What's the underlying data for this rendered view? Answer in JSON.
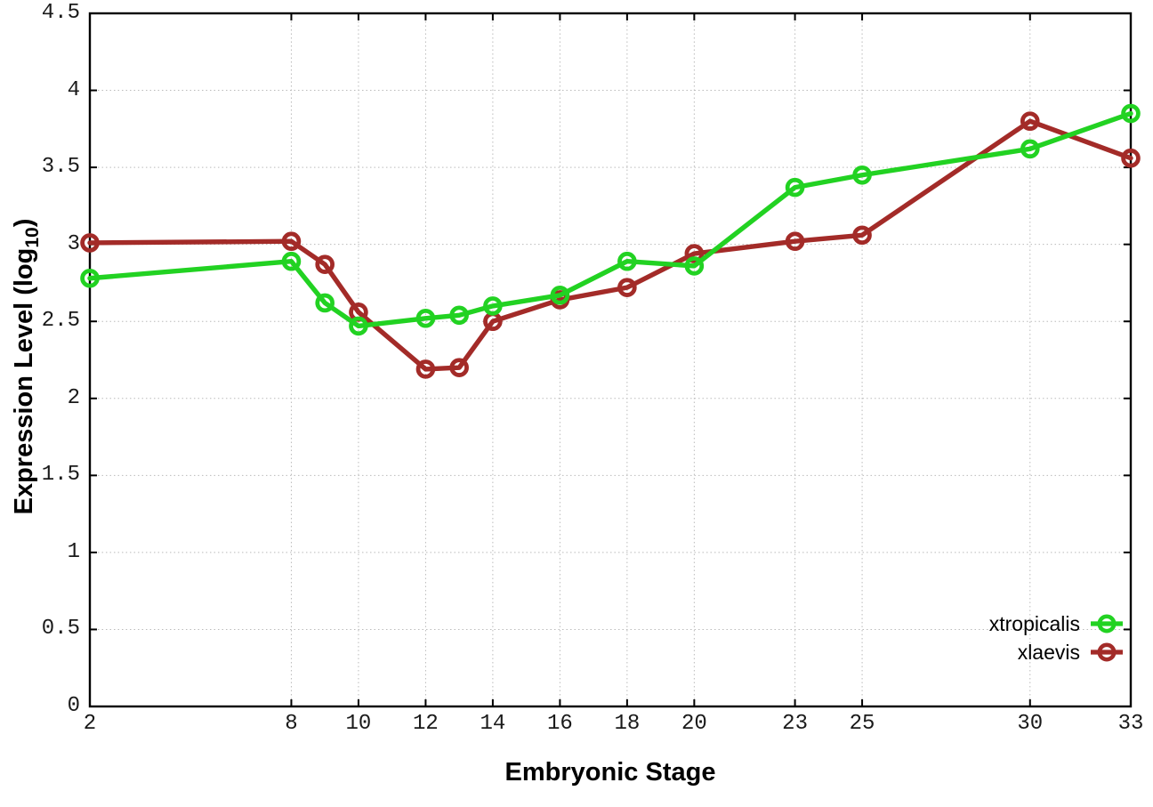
{
  "figure": {
    "background": "#ffffff",
    "ylabel_prefix": "Expression Level (log",
    "ylabel_sub": "10",
    "ylabel_suffix": ")"
  },
  "chart_data": {
    "type": "line",
    "title": "",
    "xlabel": "Embryonic Stage",
    "ylabel": "Expression Level (log10)",
    "xlim": [
      2,
      33
    ],
    "ylim": [
      0,
      4.5
    ],
    "grid": true,
    "grid_style": "dotted",
    "legend_position": "bottom-right",
    "axis_color": "#000000",
    "grid_color": "#bbbbbb",
    "x": [
      2,
      8,
      9,
      10,
      12,
      13,
      14,
      16,
      18,
      20,
      23,
      25,
      30,
      33
    ],
    "x_tick_values": [
      2,
      8,
      10,
      12,
      14,
      16,
      18,
      20,
      23,
      25,
      30,
      33
    ],
    "x_tick_labels": [
      "2",
      "8",
      "10",
      "12",
      "14",
      "16",
      "18",
      "20",
      "23",
      "25",
      "30",
      "33"
    ],
    "y_tick_values": [
      0,
      0.5,
      1,
      1.5,
      2,
      2.5,
      3,
      3.5,
      4,
      4.5
    ],
    "y_tick_labels": [
      "0",
      "0.5",
      "1",
      "1.5",
      "2",
      "2.5",
      "3",
      "3.5",
      "4",
      "4.5"
    ],
    "series": [
      {
        "name": "xtropicalis",
        "color": "#22d222",
        "marker": "open-circle",
        "values": [
          2.78,
          2.89,
          2.62,
          2.47,
          2.52,
          2.54,
          2.6,
          2.67,
          2.89,
          2.86,
          3.37,
          3.45,
          3.62,
          3.85
        ]
      },
      {
        "name": "xlaevis",
        "color": "#a32b28",
        "marker": "open-circle",
        "values": [
          3.01,
          3.02,
          2.87,
          2.56,
          2.19,
          2.2,
          2.5,
          2.64,
          2.72,
          2.94,
          3.02,
          3.06,
          3.8,
          3.56
        ]
      }
    ]
  }
}
